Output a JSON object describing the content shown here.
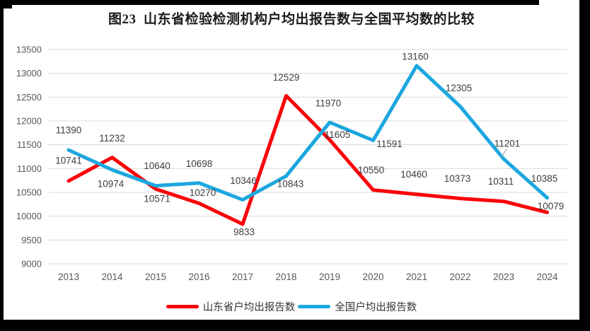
{
  "title": "图23  山东省检验检测机构户均出报告数与全国平均数的比较",
  "legend": {
    "items": [
      {
        "label": "山东省户均出报告数",
        "color": "#fb0007"
      },
      {
        "label": "全国户均出报告数",
        "color": "#1ca7de"
      }
    ]
  },
  "colors": {
    "gridline": "#d9d9d9",
    "axis_text": "#595959",
    "label_text": "#3d3d3d",
    "callout": "#a6a6a6",
    "frame": "#000000",
    "background": "#ffffff"
  },
  "chart_data": {
    "type": "line",
    "x": [
      "2013",
      "2014",
      "2015",
      "2016",
      "2017",
      "2018",
      "2019",
      "2020",
      "2021",
      "2022",
      "2023",
      "2024"
    ],
    "series": [
      {
        "name": "山东省户均出报告数",
        "color": "#fb0007",
        "values": [
          10741,
          11232,
          10571,
          10270,
          9833,
          12529,
          11605,
          10550,
          10460,
          10373,
          10311,
          10079
        ],
        "label_offsets": [
          [
            0,
            -29
          ],
          [
            0,
            -27
          ],
          [
            2,
            14
          ],
          [
            5,
            -15
          ],
          [
            2,
            11
          ],
          [
            0,
            -26
          ],
          [
            11,
            -7
          ],
          [
            -3,
            -28
          ],
          [
            -4,
            -28
          ],
          [
            -4,
            -28
          ],
          [
            -4,
            -28
          ],
          [
            5,
            -9
          ]
        ]
      },
      {
        "name": "全国户均出报告数",
        "color": "#1ca7de",
        "values": [
          11390,
          10974,
          10640,
          10698,
          10346,
          10843,
          11970,
          11591,
          13160,
          12305,
          11201,
          10385
        ],
        "label_offsets": [
          [
            0,
            -28
          ],
          [
            -2,
            20
          ],
          [
            2,
            -28
          ],
          [
            0,
            -27
          ],
          [
            1,
            -27
          ],
          [
            6,
            11
          ],
          [
            -2,
            -27
          ],
          [
            23,
            5
          ],
          [
            -2,
            -13
          ],
          [
            -2,
            -26
          ],
          [
            5,
            -22
          ],
          [
            -4,
            -27
          ]
        ],
        "callout_index": 10
      }
    ],
    "ylim": [
      9000,
      13500
    ],
    "ytick_step": 500,
    "grid": true,
    "legend_position": "bottom",
    "title": "图23  山东省检验检测机构户均出报告数与全国平均数的比较"
  }
}
